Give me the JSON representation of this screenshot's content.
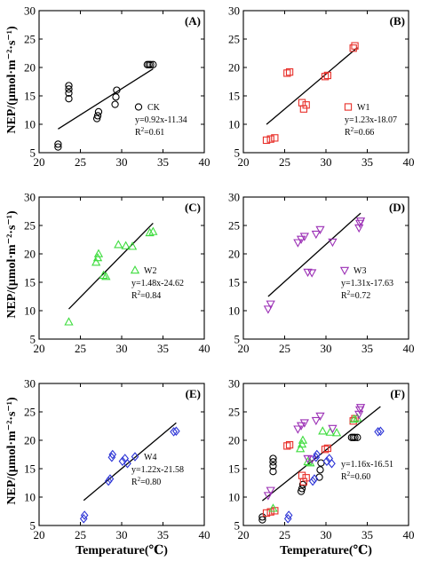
{
  "figure": {
    "ylabel": "NEP/(μmol·m⁻²·s⁻¹)",
    "xlabel": "Temperature(℃)"
  },
  "chart_data": [
    {
      "type": "scatter",
      "panel": "(A)",
      "series": [
        {
          "name": "CK",
          "marker": "circle",
          "color": "#000000",
          "points": [
            [
              22.3,
              6.0
            ],
            [
              22.3,
              6.5
            ],
            [
              23.6,
              14.5
            ],
            [
              23.6,
              15.5
            ],
            [
              23.6,
              16.2
            ],
            [
              23.6,
              16.8
            ],
            [
              27.0,
              11.0
            ],
            [
              27.1,
              11.5
            ],
            [
              27.2,
              12.2
            ],
            [
              29.2,
              13.5
            ],
            [
              29.3,
              14.8
            ],
            [
              29.4,
              16.0
            ],
            [
              33.1,
              20.5
            ],
            [
              33.3,
              20.5
            ],
            [
              33.5,
              20.5
            ],
            [
              33.8,
              20.5
            ]
          ]
        }
      ],
      "equation": "y=0.92x-11.34",
      "r2_label": "R",
      "r2_value": "=0.61",
      "fit": {
        "slope": 0.92,
        "intercept": -11.34,
        "x_range": [
          22.3,
          33.8
        ]
      },
      "xlim": [
        20,
        40
      ],
      "ylim": [
        5,
        30
      ],
      "xticks": [
        20,
        25,
        30,
        35,
        40
      ],
      "yticks": [
        5,
        10,
        15,
        20,
        25,
        30
      ]
    },
    {
      "type": "scatter",
      "panel": "(B)",
      "series": [
        {
          "name": "W1",
          "marker": "square",
          "color": "#e8302a",
          "points": [
            [
              22.8,
              7.2
            ],
            [
              23.3,
              7.4
            ],
            [
              23.8,
              7.6
            ],
            [
              25.3,
              19.0
            ],
            [
              25.6,
              19.2
            ],
            [
              27.1,
              13.8
            ],
            [
              27.3,
              12.7
            ],
            [
              27.6,
              13.4
            ],
            [
              29.9,
              18.4
            ],
            [
              30.2,
              18.6
            ],
            [
              33.3,
              23.4
            ],
            [
              33.5,
              23.8
            ]
          ]
        }
      ],
      "equation": "y=1.23x-18.07",
      "r2_label": "R",
      "r2_value": "=0.66",
      "fit": {
        "slope": 1.23,
        "intercept": -18.07,
        "x_range": [
          22.8,
          33.8
        ]
      },
      "xlim": [
        20,
        40
      ],
      "ylim": [
        5,
        30
      ],
      "xticks": [
        20,
        25,
        30,
        35,
        40
      ],
      "yticks": [
        5,
        10,
        15,
        20,
        25,
        30
      ]
    },
    {
      "type": "scatter",
      "panel": "(C)",
      "series": [
        {
          "name": "W2",
          "marker": "triangle-up",
          "color": "#3ddc3d",
          "points": [
            [
              23.6,
              8.0
            ],
            [
              26.9,
              18.5
            ],
            [
              27.1,
              19.3
            ],
            [
              27.2,
              20.0
            ],
            [
              27.8,
              16.2
            ],
            [
              28.1,
              16.0
            ],
            [
              29.6,
              21.6
            ],
            [
              30.5,
              21.4
            ],
            [
              31.3,
              21.3
            ],
            [
              33.4,
              23.7
            ],
            [
              33.8,
              23.9
            ]
          ]
        }
      ],
      "equation": "y=1.48x-24.62",
      "r2_label": "R",
      "r2_value": "=0.84",
      "fit": {
        "slope": 1.48,
        "intercept": -24.62,
        "x_range": [
          23.6,
          33.8
        ]
      },
      "xlim": [
        20,
        40
      ],
      "ylim": [
        5,
        30
      ],
      "xticks": [
        20,
        25,
        30,
        35,
        40
      ],
      "yticks": [
        5,
        10,
        15,
        20,
        25,
        30
      ]
    },
    {
      "type": "scatter",
      "panel": "(D)",
      "series": [
        {
          "name": "W3",
          "marker": "triangle-down",
          "color": "#9b2fb5",
          "points": [
            [
              23.0,
              10.3
            ],
            [
              23.3,
              11.2
            ],
            [
              26.6,
              22.0
            ],
            [
              27.0,
              22.6
            ],
            [
              27.4,
              23.1
            ],
            [
              27.8,
              16.8
            ],
            [
              28.3,
              16.7
            ],
            [
              28.8,
              23.5
            ],
            [
              29.3,
              24.3
            ],
            [
              30.8,
              22.1
            ],
            [
              34.0,
              24.6
            ],
            [
              34.1,
              25.4
            ],
            [
              34.2,
              25.8
            ]
          ]
        }
      ],
      "equation": "y=1.31x-17.63",
      "r2_label": "R",
      "r2_value": "=0.72",
      "fit": {
        "slope": 1.31,
        "intercept": -17.63,
        "x_range": [
          23.0,
          34.2
        ]
      },
      "xlim": [
        20,
        40
      ],
      "ylim": [
        5,
        30
      ],
      "xticks": [
        20,
        25,
        30,
        35,
        40
      ],
      "yticks": [
        5,
        10,
        15,
        20,
        25,
        30
      ]
    },
    {
      "type": "scatter",
      "panel": "(E)",
      "series": [
        {
          "name": "W4",
          "marker": "diamond",
          "color": "#2d35d6",
          "points": [
            [
              25.4,
              6.2
            ],
            [
              25.5,
              6.8
            ],
            [
              28.4,
              12.8
            ],
            [
              28.6,
              13.2
            ],
            [
              28.8,
              17.0
            ],
            [
              28.9,
              17.5
            ],
            [
              30.1,
              16.3
            ],
            [
              30.4,
              16.8
            ],
            [
              30.7,
              15.9
            ],
            [
              36.3,
              21.5
            ],
            [
              36.6,
              21.6
            ]
          ]
        }
      ],
      "equation": "y=1.22x-21.58",
      "r2_label": "R",
      "r2_value": "=0.80",
      "fit": {
        "slope": 1.22,
        "intercept": -21.58,
        "x_range": [
          25.4,
          36.6
        ]
      },
      "xlim": [
        20,
        40
      ],
      "ylim": [
        5,
        30
      ],
      "xticks": [
        20,
        25,
        30,
        35,
        40
      ],
      "yticks": [
        5,
        10,
        15,
        20,
        25,
        30
      ]
    },
    {
      "type": "scatter",
      "panel": "(F)",
      "series": [
        {
          "name": "CK",
          "marker": "circle",
          "color": "#000000",
          "points": [
            [
              22.3,
              6.0
            ],
            [
              22.3,
              6.5
            ],
            [
              23.6,
              14.5
            ],
            [
              23.6,
              15.5
            ],
            [
              23.6,
              16.2
            ],
            [
              23.6,
              16.8
            ],
            [
              27.0,
              11.0
            ],
            [
              27.1,
              11.5
            ],
            [
              27.2,
              12.2
            ],
            [
              29.2,
              13.5
            ],
            [
              29.3,
              14.8
            ],
            [
              29.4,
              16.0
            ],
            [
              33.1,
              20.5
            ],
            [
              33.3,
              20.5
            ],
            [
              33.5,
              20.5
            ],
            [
              33.8,
              20.5
            ]
          ]
        },
        {
          "name": "W1",
          "marker": "square",
          "color": "#e8302a",
          "points": [
            [
              22.8,
              7.2
            ],
            [
              23.3,
              7.4
            ],
            [
              23.8,
              7.6
            ],
            [
              25.3,
              19.0
            ],
            [
              25.6,
              19.2
            ],
            [
              27.1,
              13.8
            ],
            [
              27.3,
              12.7
            ],
            [
              27.6,
              13.4
            ],
            [
              29.9,
              18.4
            ],
            [
              30.2,
              18.6
            ],
            [
              33.3,
              23.4
            ],
            [
              33.5,
              23.8
            ]
          ]
        },
        {
          "name": "W2",
          "marker": "triangle-up",
          "color": "#3ddc3d",
          "points": [
            [
              23.6,
              8.0
            ],
            [
              26.9,
              18.5
            ],
            [
              27.1,
              19.3
            ],
            [
              27.2,
              20.0
            ],
            [
              27.8,
              16.2
            ],
            [
              28.1,
              16.0
            ],
            [
              29.6,
              21.6
            ],
            [
              30.5,
              21.4
            ],
            [
              31.3,
              21.3
            ],
            [
              33.4,
              23.7
            ],
            [
              33.8,
              23.9
            ]
          ]
        },
        {
          "name": "W3",
          "marker": "triangle-down",
          "color": "#9b2fb5",
          "points": [
            [
              23.0,
              10.3
            ],
            [
              23.3,
              11.2
            ],
            [
              26.6,
              22.0
            ],
            [
              27.0,
              22.6
            ],
            [
              27.4,
              23.1
            ],
            [
              27.8,
              16.8
            ],
            [
              28.3,
              16.7
            ],
            [
              28.8,
              23.5
            ],
            [
              29.3,
              24.3
            ],
            [
              30.8,
              22.1
            ],
            [
              34.0,
              24.6
            ],
            [
              34.1,
              25.4
            ],
            [
              34.2,
              25.8
            ]
          ]
        },
        {
          "name": "W4",
          "marker": "diamond",
          "color": "#2d35d6",
          "points": [
            [
              25.4,
              6.2
            ],
            [
              25.5,
              6.8
            ],
            [
              28.4,
              12.8
            ],
            [
              28.6,
              13.2
            ],
            [
              28.8,
              17.0
            ],
            [
              28.9,
              17.5
            ],
            [
              30.1,
              16.3
            ],
            [
              30.4,
              16.8
            ],
            [
              30.7,
              15.9
            ],
            [
              36.3,
              21.5
            ],
            [
              36.6,
              21.6
            ]
          ]
        }
      ],
      "equation": "y=1.16x-16.51",
      "r2_label": "R",
      "r2_value": "=0.60",
      "fit": {
        "slope": 1.16,
        "intercept": -16.51,
        "x_range": [
          22.3,
          36.6
        ]
      },
      "xlim": [
        20,
        40
      ],
      "ylim": [
        5,
        30
      ],
      "xticks": [
        20,
        25,
        30,
        35,
        40
      ],
      "yticks": [
        5,
        10,
        15,
        20,
        25,
        30
      ]
    }
  ]
}
